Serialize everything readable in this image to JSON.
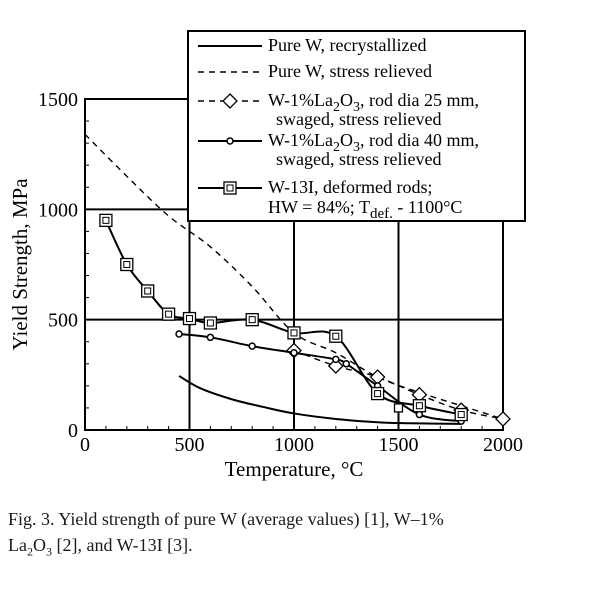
{
  "chart_data": {
    "type": "line",
    "xlabel": "Temperature, °C",
    "ylabel": "Yield Strength, MPa",
    "xlim": [
      0,
      2000
    ],
    "ylim": [
      0,
      1500
    ],
    "x_ticks": [
      "0",
      "500",
      "1000",
      "1500",
      "2000"
    ],
    "y_ticks": [
      "0",
      "500",
      "1000",
      "1500"
    ],
    "grid": true,
    "legend_position": "top-right",
    "series": [
      {
        "name": "Pure W, recrystallized",
        "style": "solid",
        "marker": "none",
        "x": [
          450,
          550,
          700,
          850,
          1000,
          1200,
          1400,
          1600,
          1800
        ],
        "y": [
          245,
          190,
          140,
          105,
          75,
          50,
          35,
          30,
          28
        ]
      },
      {
        "name": "Pure W, stress relieved",
        "style": "dashed",
        "marker": "none",
        "x": [
          0,
          200,
          400,
          600,
          800,
          1000,
          1200,
          1400,
          1600,
          1800,
          2000
        ],
        "y": [
          1340,
          1150,
          970,
          830,
          650,
          440,
          350,
          240,
          170,
          110,
          50
        ]
      },
      {
        "name": "W-1%La2O3, rod dia 25 mm, swaged, stress relieved",
        "legend_lines": [
          "W-1%La",
          "2",
          "O",
          "3",
          ", rod dia 25 mm,",
          "swaged, stress relieved"
        ],
        "style": "dashed",
        "marker": "diamond",
        "x": [
          1000,
          1200,
          1400,
          1600,
          1800,
          2000
        ],
        "y": [
          360,
          290,
          240,
          160,
          90,
          50
        ]
      },
      {
        "name": "W-1%La2O3, rod dia 40 mm, swaged, stress relieved",
        "legend_lines": [
          "W-1%La",
          "2",
          "O",
          "3",
          ", rod dia 40 mm,",
          "swaged, stress relieved"
        ],
        "style": "solid",
        "marker": "small-circle",
        "x": [
          450,
          600,
          800,
          1000,
          1200,
          1250,
          1400,
          1600,
          1800
        ],
        "y": [
          435,
          420,
          380,
          350,
          320,
          300,
          200,
          70,
          40
        ]
      },
      {
        "name": "W-13I, deformed rods; HW = 84%; Tdef. - 1100°C",
        "legend_lines": [
          "W-13I, deformed rods;",
          "HW = 84%; T",
          "def.",
          " - 1100°C"
        ],
        "style": "solid",
        "marker": "square-dot",
        "x": [
          100,
          200,
          300,
          400,
          500,
          600,
          800,
          1000,
          1200,
          1400,
          1600,
          1800
        ],
        "y": [
          950,
          750,
          630,
          525,
          505,
          485,
          500,
          440,
          425,
          165,
          110,
          70
        ]
      }
    ],
    "extra_points": [
      {
        "x": 1500,
        "y": 100,
        "marker": "square-dot"
      }
    ]
  },
  "caption": {
    "line1": "Fig. 3. Yield strength of pure W (average values) [1], W–1%",
    "line2_a": "La",
    "line2_sub1": "2",
    "line2_b": "O",
    "line2_sub2": "3",
    "line2_c": " [2], and W-13I [3]."
  },
  "colors": {
    "ink": "#000000",
    "marker_fill": "#ffffff"
  }
}
